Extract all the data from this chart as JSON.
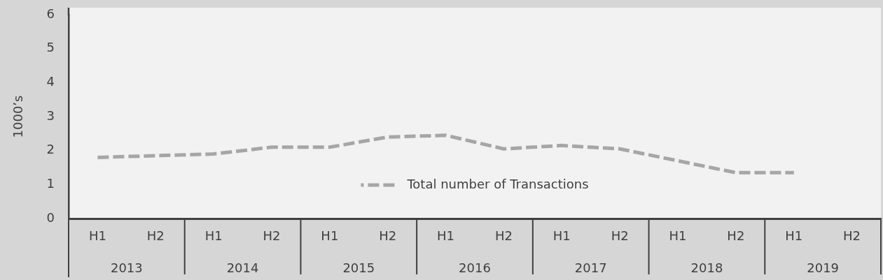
{
  "chart_data": {
    "type": "line",
    "ylabel": "1000’s",
    "categories": [
      "H1",
      "H2",
      "H1",
      "H2",
      "H1",
      "H2",
      "H1",
      "H2",
      "H1",
      "H2",
      "H1",
      "H2",
      "H1",
      "H2"
    ],
    "series": [
      {
        "name": "Total number of Transactions",
        "color": "#a6a6a6",
        "values": [
          1.8,
          1.85,
          1.9,
          2.1,
          2.1,
          2.4,
          2.45,
          2.05,
          2.15,
          2.05,
          1.7,
          1.35,
          1.35,
          null
        ]
      }
    ],
    "ylim": [
      0,
      6
    ],
    "yticks": [
      0,
      1,
      2,
      3,
      4,
      5,
      6
    ],
    "legend": "bottom",
    "marker": "none",
    "line_style": "dashed",
    "annotations": [
      "2013",
      "2014",
      "2015",
      "2016",
      "2017",
      "2018",
      "2019"
    ]
  }
}
